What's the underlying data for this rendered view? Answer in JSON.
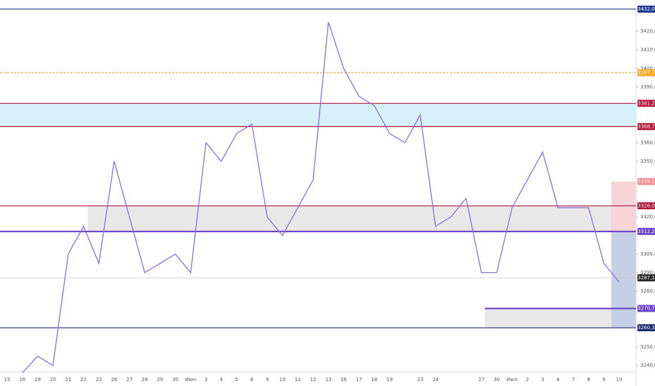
{
  "chart_data": {
    "type": "line",
    "categories": [
      "15",
      "16",
      "19",
      "20",
      "21",
      "22",
      "23",
      "26",
      "27",
      "28",
      "29",
      "30",
      "Июн",
      "3",
      "4",
      "5",
      "6",
      "9",
      "10",
      "11",
      "12",
      "13",
      "16",
      "17",
      "18",
      "19",
      null,
      "23",
      "24",
      null,
      null,
      "27",
      "30",
      "Июл",
      "2",
      "3",
      "4",
      "7",
      "8",
      "9",
      "10"
    ],
    "values": [
      null,
      3236,
      3245,
      3240,
      3300,
      3315,
      3295,
      3350,
      3320,
      3290,
      3295,
      3300,
      3290,
      3360,
      3350,
      3365,
      3370,
      3320,
      3310,
      3325,
      3340,
      3425,
      3400,
      3385,
      3380,
      3365,
      3360,
      3375,
      3315,
      3320,
      3330,
      3290,
      3290,
      3325,
      3340,
      3355,
      3325,
      3325,
      3325,
      3295,
      3285
    ],
    "color": "#8a6fdf",
    "ylim": [
      3236.5,
      3436.9
    ],
    "yticks": [
      {
        "value": 3240,
        "label": "3240,0"
      },
      {
        "value": 3250,
        "label": "3250,0"
      },
      {
        "value": 3280,
        "label": "3280,0"
      },
      {
        "value": 3290,
        "label": "3290,0"
      },
      {
        "value": 3300,
        "label": "3300,0"
      },
      {
        "value": 3320,
        "label": "3320,0"
      },
      {
        "value": 3350,
        "label": "3350,0"
      },
      {
        "value": 3360,
        "label": "3360,0"
      },
      {
        "value": 3390,
        "label": "3390,0"
      },
      {
        "value": 3400,
        "label": "3400,0"
      },
      {
        "value": 3410,
        "label": "3410,0"
      },
      {
        "value": 3420,
        "label": "3420,0"
      }
    ],
    "levels": [
      {
        "value": 3432.0,
        "label": "3432,0",
        "color": "#1a3a8f"
      },
      {
        "value": 3397.7,
        "label": "3397,7",
        "color": "#f5a623"
      },
      {
        "value": 3381.2,
        "label": "3381,2",
        "color": "#b0163a"
      },
      {
        "value": 3368.7,
        "label": "3368,7",
        "color": "#b0163a"
      },
      {
        "value": 3339.1,
        "label": "3339,1",
        "color": "#f28b96"
      },
      {
        "value": 3326.0,
        "label": "3326,0",
        "color": "#b0163a"
      },
      {
        "value": 3312.2,
        "label": "3312,2",
        "color": "#6a3fc8"
      },
      {
        "value": 3287.2,
        "label": "3287,2",
        "color": "#222222"
      },
      {
        "value": 3270.7,
        "label": "3270,7",
        "color": "#6a3fc8"
      },
      {
        "value": 3260.3,
        "label": "3260,3",
        "color": "#1a2a6f"
      }
    ]
  }
}
